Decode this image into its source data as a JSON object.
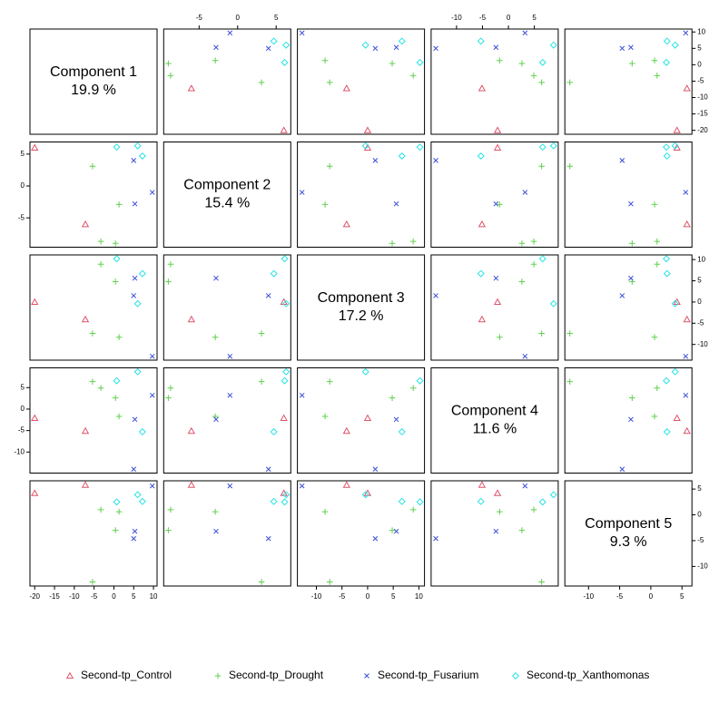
{
  "chart_data": {
    "type": "scatter-matrix",
    "components": [
      {
        "name": "Component 1",
        "variance": "19.9 %",
        "lim": [
          -21.2,
          10.9
        ],
        "ticks": [
          -20,
          -15,
          -10,
          -5,
          0,
          5,
          10
        ]
      },
      {
        "name": "Component 2",
        "variance": "15.4 %",
        "lim": [
          -9.6,
          6.9
        ],
        "ticks": [
          -5,
          0,
          5
        ]
      },
      {
        "name": "Component 3",
        "variance": "17.2 %",
        "lim": [
          -13.7,
          11.1
        ],
        "ticks": [
          -10,
          -5,
          0,
          5,
          10
        ]
      },
      {
        "name": "Component 4",
        "variance": "11.6 %",
        "lim": [
          -14.9,
          9.6
        ],
        "ticks": [
          -10,
          -5,
          0,
          5
        ]
      },
      {
        "name": "Component 5",
        "variance": "9.3 %",
        "lim": [
          -13.8,
          6.6
        ],
        "ticks": [
          -10,
          -5,
          0,
          5
        ]
      }
    ],
    "series": [
      {
        "name": "Second-tp_Control",
        "color": "#DF536B",
        "marker": "triangle",
        "components": [
          [
            -20,
            -7.2
          ],
          [
            6,
            -6
          ],
          [
            0,
            -4.1
          ],
          [
            -2.1,
            -5.1
          ],
          [
            4.2,
            5.8
          ]
        ]
      },
      {
        "name": "Second-tp_Drought",
        "color": "#61D04F",
        "marker": "plus",
        "components": [
          [
            -5.4,
            -3.3,
            0.4,
            1.3
          ],
          [
            3.1,
            -8.7,
            -9,
            -2.9
          ],
          [
            -7.4,
            8.9,
            4.8,
            -8.3
          ],
          [
            6.4,
            4.9,
            2.6,
            -1.7
          ],
          [
            -13,
            1,
            -3,
            0.6
          ]
        ]
      },
      {
        "name": "Second-tp_Fusarium",
        "color": "#3b4fd8",
        "marker": "cross",
        "components": [
          [
            5.3,
            9.7,
            5
          ],
          [
            -2.8,
            -1,
            4
          ],
          [
            5.6,
            -12.8,
            1.5
          ],
          [
            -2.4,
            3.2,
            -14
          ],
          [
            -3.2,
            5.6,
            -4.6
          ]
        ]
      },
      {
        "name": "Second-tp_Xanthomonas",
        "color": "#28E2E5",
        "marker": "diamond",
        "components": [
          [
            0.7,
            6,
            7.2
          ],
          [
            6.1,
            6.3,
            4.7
          ],
          [
            10.2,
            -0.4,
            6.7
          ],
          [
            6.6,
            8.7,
            -5.3
          ],
          [
            2.5,
            3.9,
            2.6
          ]
        ]
      }
    ]
  }
}
